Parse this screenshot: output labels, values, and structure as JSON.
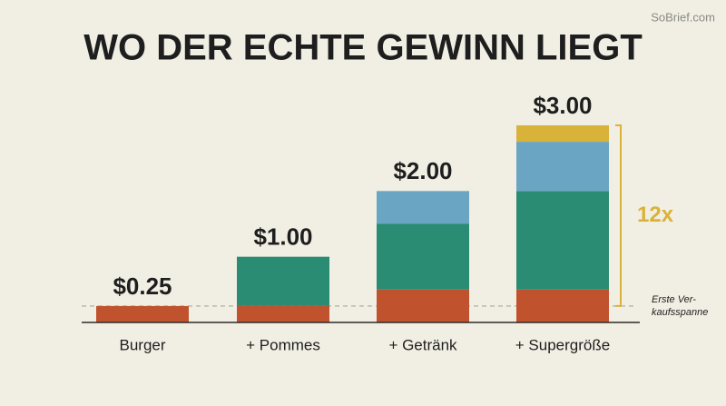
{
  "watermark": "SoBrief.com",
  "chart_data": {
    "type": "stacked-bar",
    "title": "WO DER ECHTE GEWINN LIEGT",
    "categories": [
      "Burger",
      "+ Pommes",
      "+ Getränk",
      "+ Supergröße"
    ],
    "series": [
      {
        "color": "#c0532e",
        "values": [
          0.25,
          0.25,
          0.5,
          0.5
        ]
      },
      {
        "color": "#2a8c73",
        "values": [
          null,
          0.75,
          1.0,
          1.5
        ]
      },
      {
        "color": "#6aa5c4",
        "values": [
          null,
          null,
          0.5,
          0.75
        ]
      },
      {
        "color": "#d9b23a",
        "values": [
          null,
          null,
          null,
          0.25
        ]
      }
    ],
    "totals": [
      0.25,
      1.0,
      2.0,
      3.0
    ],
    "total_labels": [
      "$0.25",
      "$1.00",
      "$2.00",
      "$3.00"
    ],
    "ylim": [
      0,
      3
    ],
    "reference_line": {
      "value": 0.25,
      "label": [
        "Erste Ver-",
        "kaufsspanne"
      ]
    },
    "bracket": {
      "from": 0.25,
      "to": 3.0,
      "label": "12x",
      "color": "#d9b23a"
    }
  }
}
